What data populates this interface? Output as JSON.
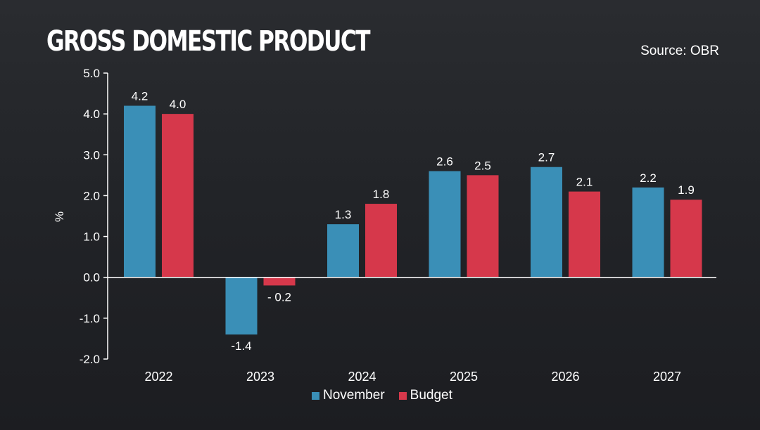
{
  "header": {
    "title": "GROSS DOMESTIC PRODUCT",
    "source": "Source: OBR"
  },
  "legend": {
    "november": "November",
    "budget": "Budget"
  },
  "colors": {
    "november": "#3a8fb7",
    "budget": "#d6384b",
    "axis": "#ffffff"
  },
  "chart_data": {
    "type": "bar",
    "title": "GROSS DOMESTIC PRODUCT",
    "xlabel": "",
    "ylabel": "%",
    "ylim": [
      -2.0,
      5.0
    ],
    "yticks": [
      "5.0",
      "4.0",
      "3.0",
      "2.0",
      "1.0",
      "0.0",
      "-1.0",
      "-2.0"
    ],
    "ytick_values": [
      5,
      4,
      3,
      2,
      1,
      0,
      -1,
      -2
    ],
    "categories": [
      "2022",
      "2023",
      "2024",
      "2025",
      "2026",
      "2027"
    ],
    "series": [
      {
        "name": "November",
        "values": [
          4.2,
          -1.4,
          1.3,
          2.6,
          2.7,
          2.2
        ],
        "labels": [
          "4.2",
          "-1.4",
          "1.3",
          "2.6",
          "2.7",
          "2.2"
        ]
      },
      {
        "name": "Budget",
        "values": [
          4.0,
          -0.2,
          1.8,
          2.5,
          2.1,
          1.9
        ],
        "labels": [
          "4.0",
          "- 0.2",
          "1.8",
          "2.5",
          "2.1",
          "1.9"
        ]
      }
    ],
    "legend_position": "bottom"
  }
}
